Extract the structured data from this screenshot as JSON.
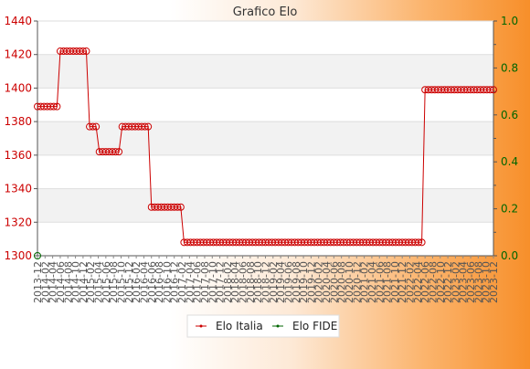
{
  "chart_data": {
    "type": "line",
    "title": "Grafico Elo",
    "xlabel": "",
    "ylabel": "",
    "x_tick_labels": [
      "2013-12",
      "2014-02",
      "2014-04",
      "2014-06",
      "2014-08",
      "2014-10",
      "2014-12",
      "2015-02",
      "2015-04",
      "2015-06",
      "2015-08",
      "2015-10",
      "2015-12",
      "2016-02",
      "2016-04",
      "2016-06",
      "2016-08",
      "2016-10",
      "2016-12",
      "2017-02",
      "2017-04",
      "2017-06",
      "2017-08",
      "2017-10",
      "2017-12",
      "2018-02",
      "2018-04",
      "2018-06",
      "2018-08",
      "2018-10",
      "2018-12",
      "2019-02",
      "2019-04",
      "2019-06",
      "2019-08",
      "2019-10",
      "2019-12",
      "2020-02",
      "2020-04",
      "2020-06",
      "2020-08",
      "2020-10",
      "2020-12",
      "2021-02",
      "2021-04",
      "2021-06",
      "2021-08",
      "2021-10",
      "2021-12",
      "2022-02",
      "2022-04",
      "2022-06",
      "2022-08",
      "2022-10",
      "2022-12",
      "2023-02",
      "2023-04",
      "2023-06",
      "2023-08",
      "2023-10",
      "2023-12"
    ],
    "y_left": {
      "min": 1300,
      "max": 1440,
      "ticks": [
        1300,
        1320,
        1340,
        1360,
        1380,
        1400,
        1420,
        1440
      ]
    },
    "y_right": {
      "min": 0.0,
      "max": 1.0,
      "ticks": [
        "0.0",
        "0.2",
        "0.4",
        "0.6",
        "0.8",
        "1.0"
      ]
    },
    "grid": true,
    "legend_position": "bottom",
    "series": [
      {
        "name": "Elo Italia",
        "color": "#cc0000",
        "axis": "left",
        "values": [
          1389,
          1389,
          1389,
          1389,
          1389,
          1389,
          1389,
          1422,
          1422,
          1422,
          1422,
          1422,
          1422,
          1422,
          1422,
          1422,
          1377,
          1377,
          1377,
          1362,
          1362,
          1362,
          1362,
          1362,
          1362,
          1362,
          1377,
          1377,
          1377,
          1377,
          1377,
          1377,
          1377,
          1377,
          1377,
          1329,
          1329,
          1329,
          1329,
          1329,
          1329,
          1329,
          1329,
          1329,
          1329,
          1308,
          1308,
          1308,
          1308,
          1308,
          1308,
          1308,
          1308,
          1308,
          1308,
          1308,
          1308,
          1308,
          1308,
          1308,
          1308,
          1308,
          1308,
          1308,
          1308,
          1308,
          1308,
          1308,
          1308,
          1308,
          1308,
          1308,
          1308,
          1308,
          1308,
          1308,
          1308,
          1308,
          1308,
          1308,
          1308,
          1308,
          1308,
          1308,
          1308,
          1308,
          1308,
          1308,
          1308,
          1308,
          1308,
          1308,
          1308,
          1308,
          1308,
          1308,
          1308,
          1308,
          1308,
          1308,
          1308,
          1308,
          1308,
          1308,
          1308,
          1308,
          1308,
          1308,
          1308,
          1308,
          1308,
          1308,
          1308,
          1308,
          1308,
          1308,
          1308,
          1308,
          1308,
          1399,
          1399,
          1399,
          1399,
          1399,
          1399,
          1399,
          1399,
          1399,
          1399,
          1399,
          1399,
          1399,
          1399,
          1399,
          1399,
          1399,
          1399,
          1399,
          1399,
          1399,
          1399
        ]
      },
      {
        "name": "Elo FIDE",
        "color": "#006600",
        "axis": "right",
        "values": [
          0
        ]
      }
    ]
  }
}
